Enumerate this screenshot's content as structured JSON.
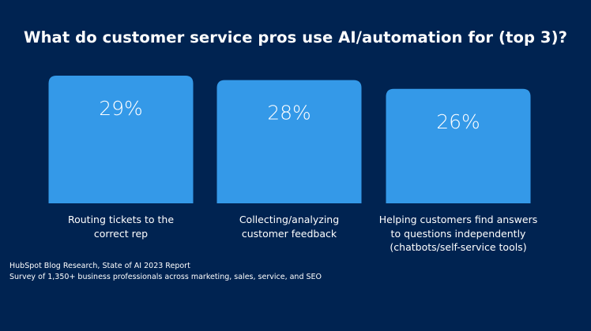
{
  "chart_data": {
    "type": "bar",
    "title": "What do customer service pros use AI/automation for (top 3)?",
    "categories": [
      "Routing tickets to the\ncorrect rep",
      "Collecting/analyzing\ncustomer feedback",
      "Helping customers find answers\nto questions independently\n(chatbots/self-service tools)"
    ],
    "values": [
      29,
      28,
      26
    ],
    "value_labels": [
      "29%",
      "28%",
      "26%"
    ],
    "unit": "%",
    "grid": false,
    "bar_color": "#3499E8"
  },
  "source": {
    "line1": "HubSpot Blog Research, State of AI 2023 Report",
    "line2": "Survey of 1,350+ business professionals across marketing, sales, service, and SEO"
  },
  "colors": {
    "background": "#002351",
    "bar": "#3499E8",
    "text": "#FFFFFF"
  }
}
